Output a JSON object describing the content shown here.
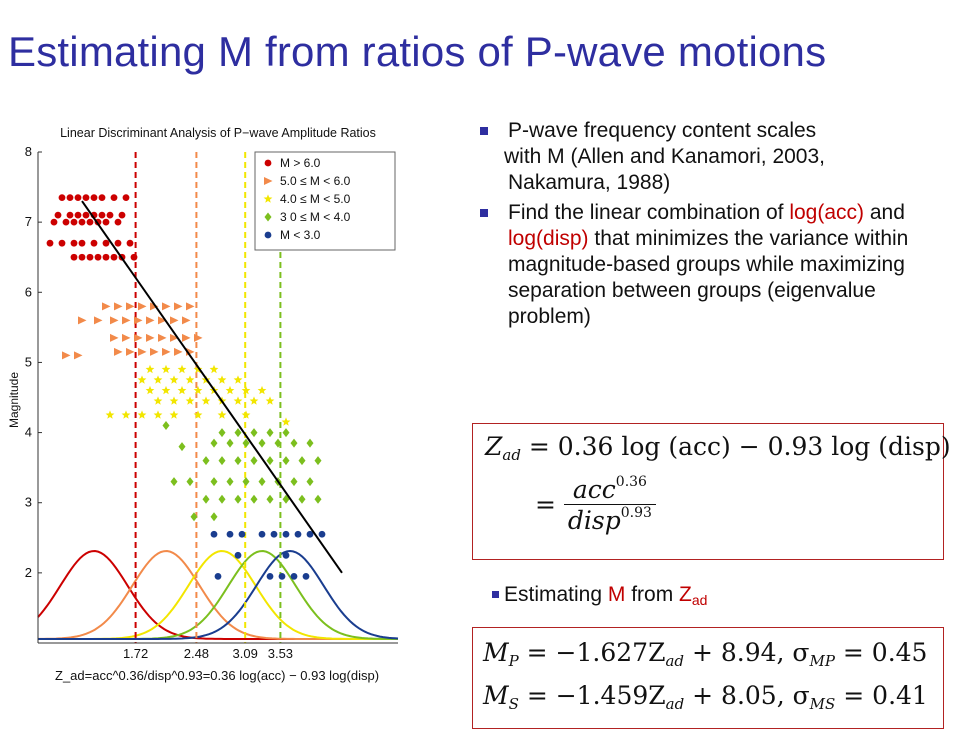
{
  "slide": {
    "title": "Estimating M from ratios of P-wave motions"
  },
  "bullets": [
    {
      "parts": [
        "P-wave frequency content scales",
        "with M (Allen and Kanamori, 2003,",
        "Nakamura, 1988)"
      ]
    },
    {
      "pre": "Find the linear combination of ",
      "red1": "log(acc)",
      "mid": " and ",
      "red2": "log(disp)",
      "post": " that minimizes the variance within magnitude-based groups while maximizing separation between groups (eigenvalue problem)"
    }
  ],
  "equation1": {
    "line1_lhs": "Z",
    "line1_sub": "ad",
    "line1_rhs": "= 0.36 log (acc) − 0.93 log (disp)",
    "frac_num": "acc",
    "frac_num_exp": "0.36",
    "frac_den": "disp",
    "frac_den_exp": "0.93"
  },
  "estimating_line": {
    "pre": "Estimating ",
    "m": "M",
    "mid": " from ",
    "z": "Z",
    "z_sub": "ad"
  },
  "equation2": {
    "mp": "M",
    "mp_sub": "P",
    "mp_rhs": "= −1.627Z",
    "mp_rhs_sub": "ad",
    "mp_tail": "+ 8.94, σ",
    "mp_sigma_sub": "MP",
    "mp_val": "= 0.45",
    "ms": "M",
    "ms_sub": "S",
    "ms_rhs": "= −1.459Z",
    "ms_rhs_sub": "ad",
    "ms_tail": "+ 8.05, σ",
    "ms_sigma_sub": "MS",
    "ms_val": "= 0.41"
  },
  "chart_data": {
    "type": "scatter",
    "title": "Linear Discriminant Analysis of P−wave Amplitude Ratios",
    "ylabel": "Magnitude",
    "xlabel": "Z_ad=acc^0.36/disp^0.93=0.36 log(acc) − 0.93 log(disp)",
    "ylim": [
      1,
      8
    ],
    "yticks": [
      2,
      3,
      4,
      5,
      6,
      7,
      8
    ],
    "xlim": [
      0.5,
      5.0
    ],
    "threshold_labels": [
      "1.72",
      "2.48",
      "3.09",
      "3.53"
    ],
    "thresholds": [
      1.72,
      2.48,
      3.09,
      3.53
    ],
    "legend_position": "top-right",
    "fit_line": {
      "x": [
        1.05,
        4.3
      ],
      "y": [
        7.3,
        2.0
      ]
    },
    "series": [
      {
        "name": "M > 6.0",
        "color": "#cc0000",
        "marker": "circle",
        "mean_x": 1.2,
        "sd": 0.42,
        "points": [
          [
            0.8,
            7.35
          ],
          [
            0.9,
            7.35
          ],
          [
            1.0,
            7.35
          ],
          [
            1.1,
            7.35
          ],
          [
            1.2,
            7.35
          ],
          [
            1.3,
            7.35
          ],
          [
            1.45,
            7.35
          ],
          [
            1.6,
            7.35
          ],
          [
            0.75,
            7.1
          ],
          [
            0.9,
            7.1
          ],
          [
            1.0,
            7.1
          ],
          [
            1.1,
            7.1
          ],
          [
            1.2,
            7.1
          ],
          [
            1.3,
            7.1
          ],
          [
            1.4,
            7.1
          ],
          [
            1.55,
            7.1
          ],
          [
            0.7,
            7.0
          ],
          [
            0.85,
            7.0
          ],
          [
            0.95,
            7.0
          ],
          [
            1.05,
            7.0
          ],
          [
            1.15,
            7.0
          ],
          [
            1.25,
            7.0
          ],
          [
            1.35,
            7.0
          ],
          [
            1.5,
            7.0
          ],
          [
            0.65,
            6.7
          ],
          [
            0.8,
            6.7
          ],
          [
            0.95,
            6.7
          ],
          [
            1.05,
            6.7
          ],
          [
            1.2,
            6.7
          ],
          [
            1.35,
            6.7
          ],
          [
            1.5,
            6.7
          ],
          [
            1.65,
            6.7
          ],
          [
            0.95,
            6.5
          ],
          [
            1.05,
            6.5
          ],
          [
            1.15,
            6.5
          ],
          [
            1.25,
            6.5
          ],
          [
            1.35,
            6.5
          ],
          [
            1.45,
            6.5
          ],
          [
            1.55,
            6.5
          ],
          [
            1.7,
            6.5
          ]
        ]
      },
      {
        "name": "5.0 ≤ M < 6.0",
        "color": "#f28a4a",
        "marker": "triangle",
        "mean_x": 2.1,
        "sd": 0.42,
        "points": [
          [
            1.35,
            5.8
          ],
          [
            1.5,
            5.8
          ],
          [
            1.65,
            5.8
          ],
          [
            1.8,
            5.8
          ],
          [
            1.95,
            5.8
          ],
          [
            2.1,
            5.8
          ],
          [
            2.25,
            5.8
          ],
          [
            2.4,
            5.8
          ],
          [
            1.05,
            5.6
          ],
          [
            1.25,
            5.6
          ],
          [
            1.45,
            5.6
          ],
          [
            1.6,
            5.6
          ],
          [
            1.75,
            5.6
          ],
          [
            1.9,
            5.6
          ],
          [
            2.05,
            5.6
          ],
          [
            2.2,
            5.6
          ],
          [
            2.35,
            5.6
          ],
          [
            1.45,
            5.35
          ],
          [
            1.6,
            5.35
          ],
          [
            1.75,
            5.35
          ],
          [
            1.9,
            5.35
          ],
          [
            2.05,
            5.35
          ],
          [
            2.2,
            5.35
          ],
          [
            2.35,
            5.35
          ],
          [
            2.5,
            5.35
          ],
          [
            0.85,
            5.1
          ],
          [
            1.0,
            5.1
          ],
          [
            1.5,
            5.15
          ],
          [
            1.65,
            5.15
          ],
          [
            1.8,
            5.15
          ],
          [
            1.95,
            5.15
          ],
          [
            2.1,
            5.15
          ],
          [
            2.25,
            5.15
          ],
          [
            2.4,
            5.15
          ]
        ]
      },
      {
        "name": "4.0 ≤ M < 5.0",
        "color": "#f2e600",
        "marker": "star",
        "mean_x": 2.8,
        "sd": 0.42,
        "points": [
          [
            1.9,
            4.9
          ],
          [
            2.1,
            4.9
          ],
          [
            2.3,
            4.9
          ],
          [
            2.5,
            4.9
          ],
          [
            2.7,
            4.9
          ],
          [
            1.8,
            4.75
          ],
          [
            2.0,
            4.75
          ],
          [
            2.2,
            4.75
          ],
          [
            2.4,
            4.75
          ],
          [
            2.6,
            4.75
          ],
          [
            2.8,
            4.75
          ],
          [
            3.0,
            4.75
          ],
          [
            1.9,
            4.6
          ],
          [
            2.1,
            4.6
          ],
          [
            2.3,
            4.6
          ],
          [
            2.5,
            4.6
          ],
          [
            2.7,
            4.6
          ],
          [
            2.9,
            4.6
          ],
          [
            3.1,
            4.6
          ],
          [
            3.3,
            4.6
          ],
          [
            2.0,
            4.45
          ],
          [
            2.2,
            4.45
          ],
          [
            2.4,
            4.45
          ],
          [
            2.6,
            4.45
          ],
          [
            2.8,
            4.45
          ],
          [
            3.0,
            4.45
          ],
          [
            3.2,
            4.45
          ],
          [
            3.4,
            4.45
          ],
          [
            1.4,
            4.25
          ],
          [
            1.6,
            4.25
          ],
          [
            1.8,
            4.25
          ],
          [
            2.0,
            4.25
          ],
          [
            2.2,
            4.25
          ],
          [
            2.5,
            4.25
          ],
          [
            2.8,
            4.25
          ],
          [
            3.1,
            4.25
          ],
          [
            3.6,
            4.15
          ]
        ]
      },
      {
        "name": "3 0 ≤ M < 4.0",
        "color": "#7cbf1e",
        "marker": "diamond",
        "mean_x": 3.3,
        "sd": 0.42,
        "points": [
          [
            2.8,
            4.0
          ],
          [
            3.0,
            4.0
          ],
          [
            3.2,
            4.0
          ],
          [
            3.4,
            4.0
          ],
          [
            3.6,
            4.0
          ],
          [
            2.7,
            3.85
          ],
          [
            2.9,
            3.85
          ],
          [
            3.1,
            3.85
          ],
          [
            3.3,
            3.85
          ],
          [
            3.5,
            3.85
          ],
          [
            3.7,
            3.85
          ],
          [
            3.9,
            3.85
          ],
          [
            2.6,
            3.6
          ],
          [
            2.8,
            3.6
          ],
          [
            3.0,
            3.6
          ],
          [
            3.2,
            3.6
          ],
          [
            3.4,
            3.6
          ],
          [
            3.6,
            3.6
          ],
          [
            3.8,
            3.6
          ],
          [
            4.0,
            3.6
          ],
          [
            2.2,
            3.3
          ],
          [
            2.4,
            3.3
          ],
          [
            2.7,
            3.3
          ],
          [
            2.9,
            3.3
          ],
          [
            3.1,
            3.3
          ],
          [
            3.3,
            3.3
          ],
          [
            3.5,
            3.3
          ],
          [
            3.7,
            3.3
          ],
          [
            3.9,
            3.3
          ],
          [
            2.6,
            3.05
          ],
          [
            2.8,
            3.05
          ],
          [
            3.0,
            3.05
          ],
          [
            3.2,
            3.05
          ],
          [
            3.4,
            3.05
          ],
          [
            3.6,
            3.05
          ],
          [
            3.8,
            3.05
          ],
          [
            4.0,
            3.05
          ],
          [
            2.1,
            4.1
          ],
          [
            2.3,
            3.8
          ],
          [
            2.45,
            2.8
          ],
          [
            2.7,
            2.8
          ]
        ]
      },
      {
        "name": "M < 3.0",
        "color": "#1a3d8f",
        "marker": "circle",
        "mean_x": 3.65,
        "sd": 0.42,
        "points": [
          [
            2.7,
            2.55
          ],
          [
            2.9,
            2.55
          ],
          [
            3.05,
            2.55
          ],
          [
            3.3,
            2.55
          ],
          [
            3.45,
            2.55
          ],
          [
            3.6,
            2.55
          ],
          [
            3.75,
            2.55
          ],
          [
            3.9,
            2.55
          ],
          [
            4.05,
            2.55
          ],
          [
            3.0,
            2.25
          ],
          [
            3.6,
            2.25
          ],
          [
            2.75,
            1.95
          ],
          [
            3.4,
            1.95
          ],
          [
            3.55,
            1.95
          ],
          [
            3.7,
            1.95
          ],
          [
            3.85,
            1.95
          ]
        ]
      }
    ]
  }
}
